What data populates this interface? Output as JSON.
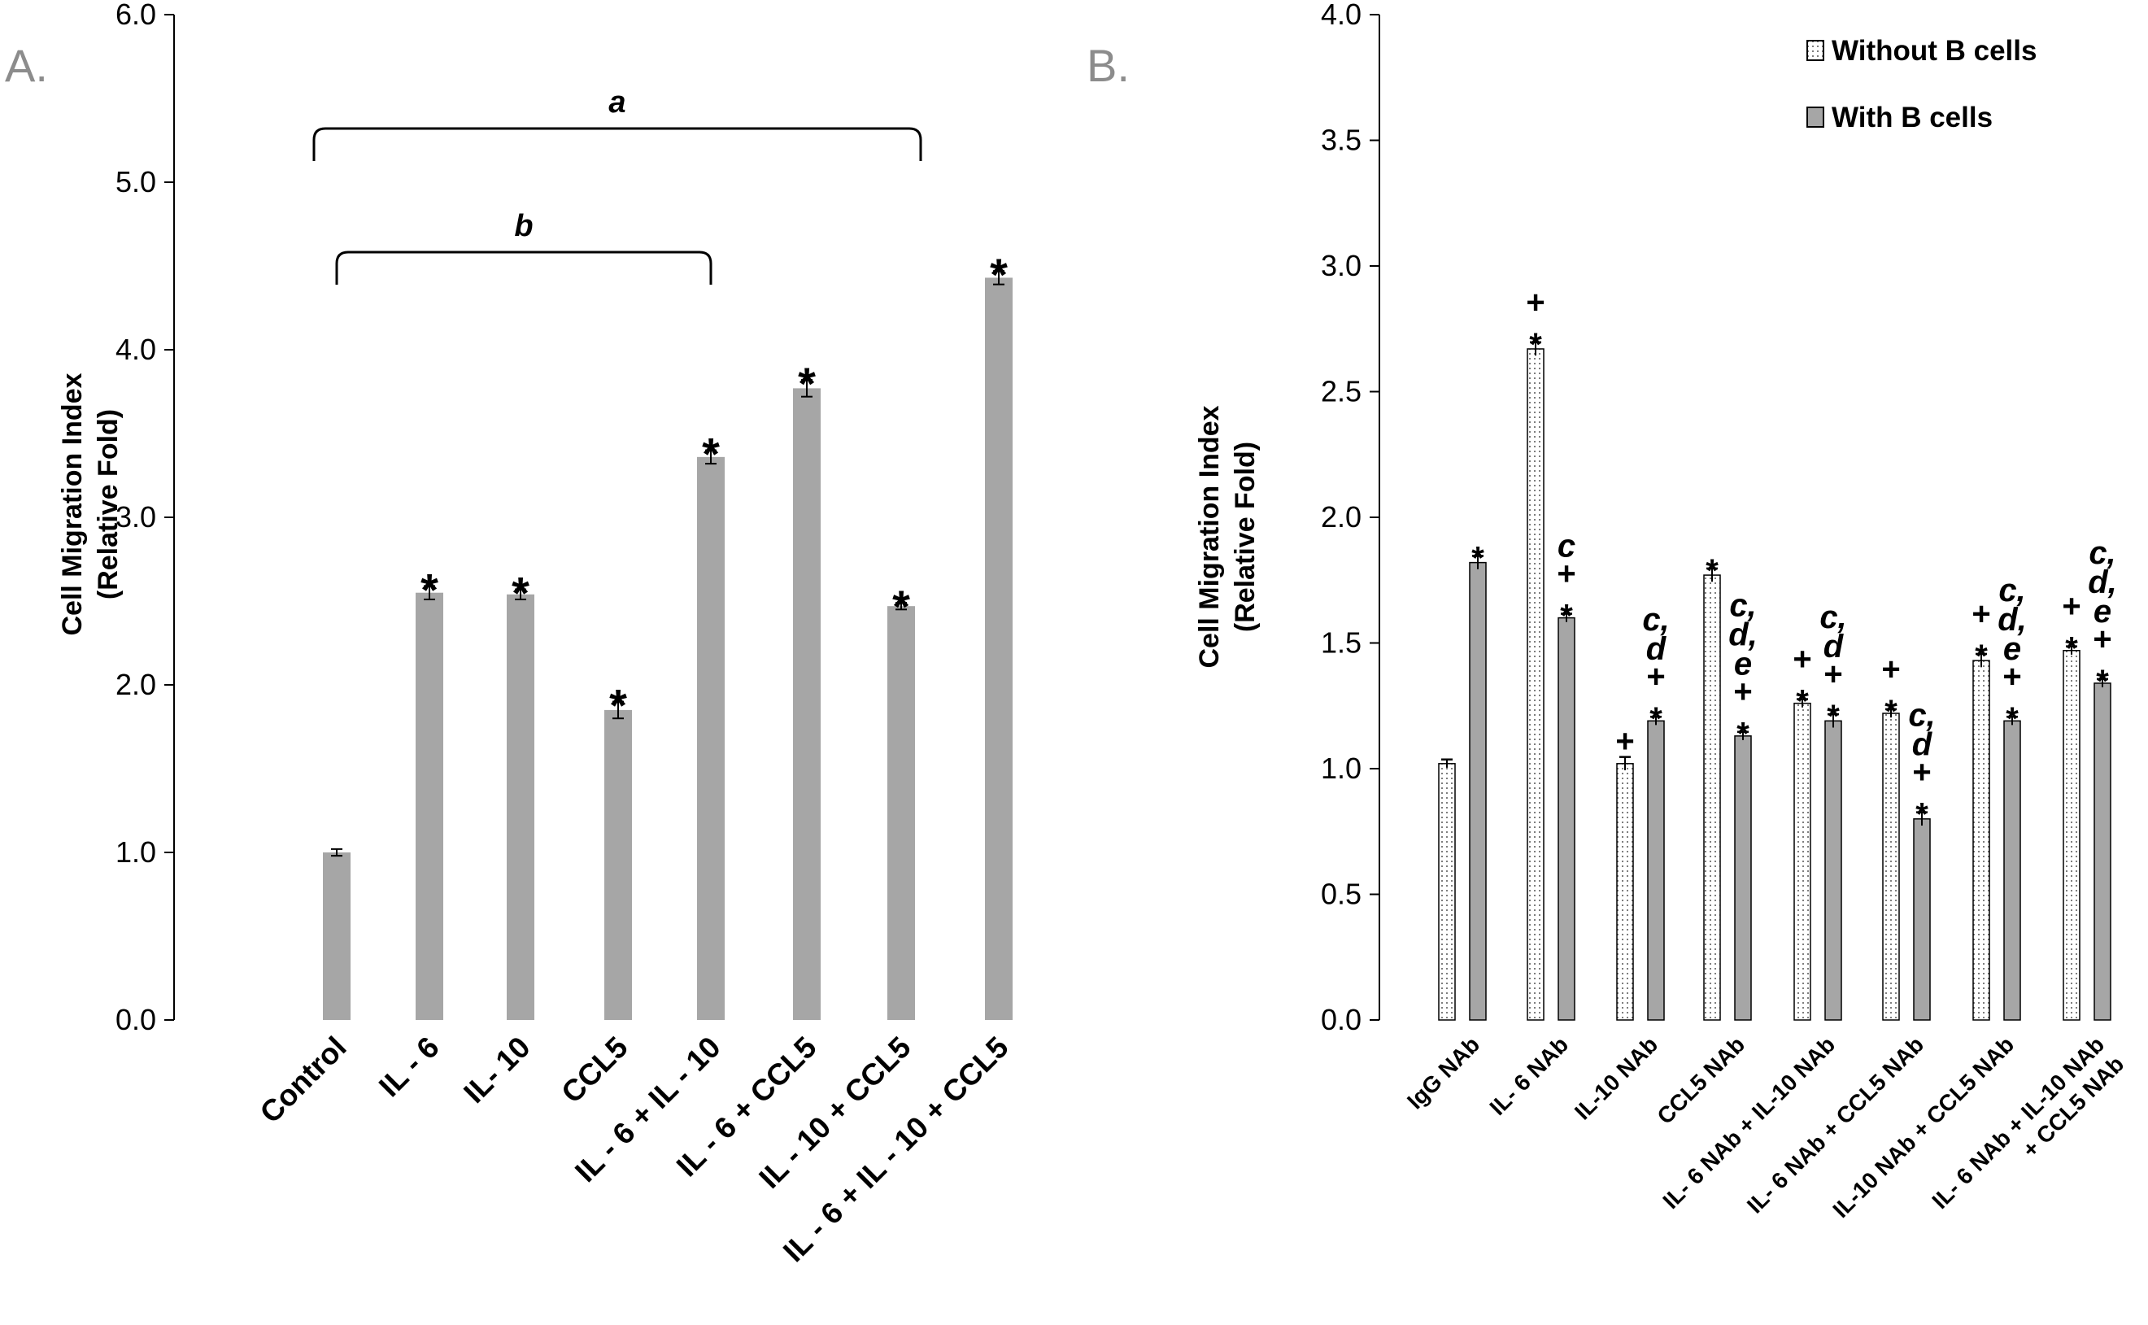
{
  "chart_data": [
    {
      "panel": "A.",
      "type": "bar",
      "ylabel": [
        "Cell Migration Index",
        "(Relative Fold)"
      ],
      "ylim": [
        0,
        6
      ],
      "yticks": [
        "0.0",
        "1.0",
        "2.0",
        "3.0",
        "4.0",
        "5.0",
        "6.0"
      ],
      "categories": [
        "Control",
        "IL - 6",
        "IL- 10",
        "CCL5",
        "IL - 6 + IL - 10",
        "IL - 6 + CCL5",
        "IL - 10 + CCL5",
        "IL - 6 + IL - 10 + CCL5"
      ],
      "values": [
        1.0,
        2.55,
        2.54,
        1.85,
        3.36,
        3.77,
        2.47,
        4.43
      ],
      "errors": [
        0.02,
        0.04,
        0.03,
        0.05,
        0.04,
        0.05,
        0.02,
        0.04
      ],
      "annotations": [
        "",
        "*",
        "*",
        "*",
        "*",
        "*",
        "*",
        "*"
      ],
      "bar_color": "#a6a6a6",
      "brackets": [
        {
          "label": "a",
          "from_category": 0,
          "to_category": 6,
          "y": 5.3
        },
        {
          "label": "b",
          "from_category": 0,
          "to_category": 4,
          "y": 4.7
        }
      ]
    },
    {
      "panel": "B.",
      "type": "bar",
      "ylabel": [
        "Cell Migration Index",
        "(Relative Fold)"
      ],
      "ylim": [
        0,
        4
      ],
      "yticks": [
        "0.0",
        "0.5",
        "1.0",
        "1.5",
        "2.0",
        "2.5",
        "3.0",
        "3.5",
        "4.0"
      ],
      "categories": [
        [
          "IgG NAb"
        ],
        [
          "IL- 6 NAb"
        ],
        [
          "IL-10 NAb"
        ],
        [
          "CCL5 NAb"
        ],
        [
          "IL- 6 NAb + IL-10 NAb"
        ],
        [
          "IL- 6 NAb + CCL5 NAb"
        ],
        [
          "IL-10 NAb + CCL5 NAb"
        ],
        [
          "IL- 6 NAb + IL-10 NAb",
          "+ CCL5 NAb"
        ]
      ],
      "legend": {
        "position": "top-right",
        "entries": [
          "Without B cells",
          "With B cells"
        ]
      },
      "series": [
        {
          "name": "Without B cells",
          "pattern": "dotted-white",
          "values": [
            1.02,
            2.67,
            1.02,
            1.77,
            1.26,
            1.22,
            1.43,
            1.47
          ],
          "errors": [
            0.01,
            0.02,
            0.02,
            0.02,
            0.01,
            0.01,
            0.02,
            0.01
          ],
          "annotations": [
            [],
            [
              "*",
              "+"
            ],
            [
              "+"
            ],
            [
              "*"
            ],
            [
              "*",
              "+"
            ],
            [
              "*",
              "+"
            ],
            [
              "*",
              "+"
            ],
            [
              "*",
              "+"
            ]
          ]
        },
        {
          "name": "With B cells",
          "color": "#a6a6a6",
          "values": [
            1.82,
            1.6,
            1.19,
            1.13,
            1.19,
            0.8,
            1.19,
            1.34
          ],
          "errors": [
            0.02,
            0.01,
            0.01,
            0.01,
            0.02,
            0.02,
            0.01,
            0.01
          ],
          "annotations": [
            [
              "*"
            ],
            [
              "*",
              "+",
              "c"
            ],
            [
              "*",
              "+",
              "d",
              "c,"
            ],
            [
              "*",
              "+",
              "e",
              "d,",
              "c,"
            ],
            [
              "*",
              "+",
              "d",
              "c,"
            ],
            [
              "*",
              "+",
              "d",
              "c,"
            ],
            [
              "*",
              "+",
              "e",
              "d,",
              "c,"
            ],
            [
              "*",
              "+",
              "e",
              "d,",
              "c,"
            ]
          ]
        }
      ]
    }
  ]
}
